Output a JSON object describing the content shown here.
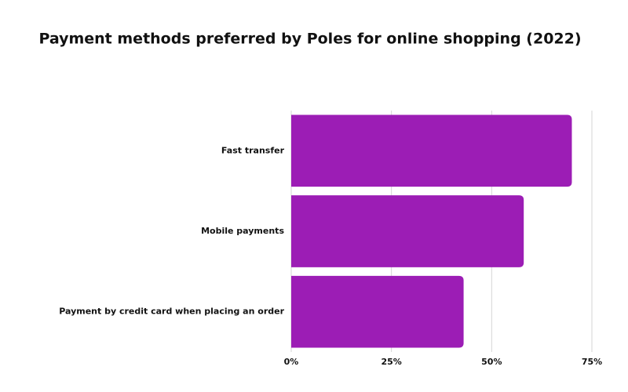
{
  "chart_data": {
    "type": "hbar",
    "title": "Payment methods preferred by Poles for online shopping (2022)",
    "categories": [
      "Fast transfer",
      "Mobile payments",
      "Payment by credit card when placing an order"
    ],
    "values": [
      70,
      58,
      43
    ],
    "color": "#9c1db5",
    "xlim": [
      0,
      75
    ],
    "xticks": [
      {
        "value": 0,
        "label": "0%"
      },
      {
        "value": 25,
        "label": "25%"
      },
      {
        "value": 50,
        "label": "50%"
      },
      {
        "value": 75,
        "label": "75%"
      }
    ],
    "grid": true
  }
}
